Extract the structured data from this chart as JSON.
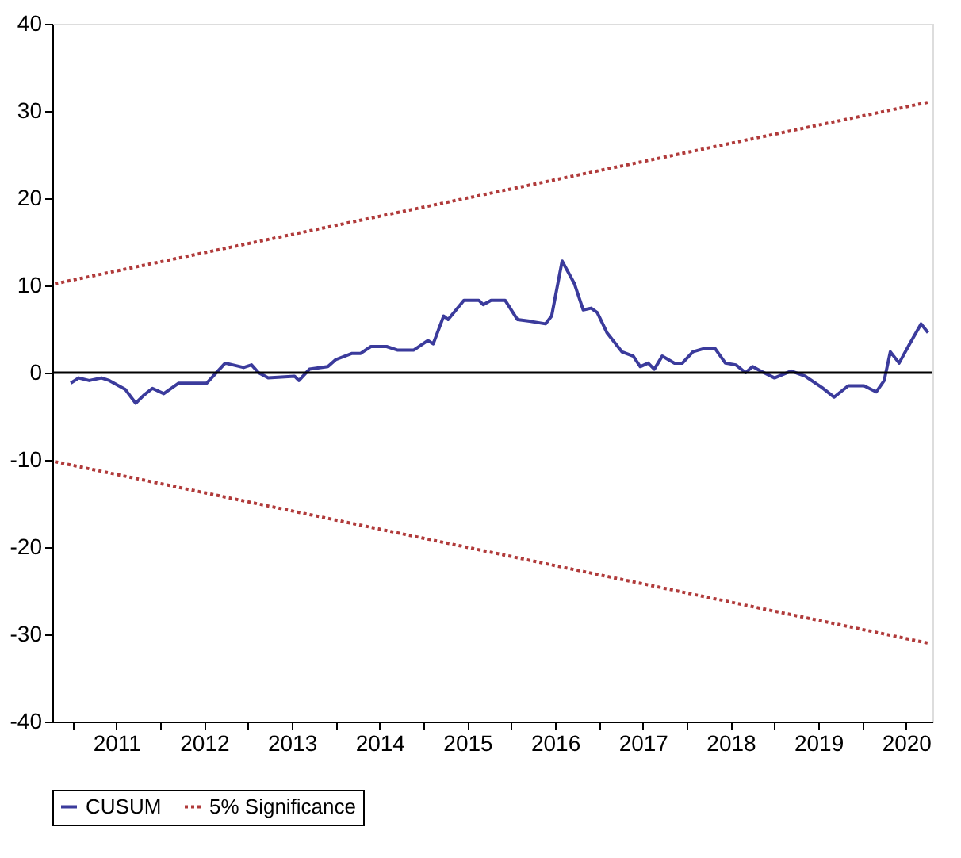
{
  "chart_data": {
    "type": "line",
    "xlim": [
      2010.77,
      2020.8
    ],
    "ylim": [
      -40,
      40
    ],
    "yticks": [
      -40,
      -30,
      -20,
      -10,
      0,
      10,
      20,
      30,
      40
    ],
    "xticks": [
      {
        "value": 2011,
        "label": null
      },
      {
        "value": 2011.5,
        "label": "2011"
      },
      {
        "value": 2012,
        "label": null
      },
      {
        "value": 2012.5,
        "label": "2012"
      },
      {
        "value": 2013,
        "label": null
      },
      {
        "value": 2013.5,
        "label": "2013"
      },
      {
        "value": 2014,
        "label": null
      },
      {
        "value": 2014.5,
        "label": "2014"
      },
      {
        "value": 2015,
        "label": null
      },
      {
        "value": 2015.5,
        "label": "2015"
      },
      {
        "value": 2016,
        "label": null
      },
      {
        "value": 2016.5,
        "label": "2016"
      },
      {
        "value": 2017,
        "label": null
      },
      {
        "value": 2017.5,
        "label": "2017"
      },
      {
        "value": 2018,
        "label": null
      },
      {
        "value": 2018.5,
        "label": "2018"
      },
      {
        "value": 2019,
        "label": null
      },
      {
        "value": 2019.5,
        "label": "2019"
      },
      {
        "value": 2020,
        "label": null
      },
      {
        "value": 2020.5,
        "label": "2020"
      }
    ],
    "grid": false,
    "legend": "bottom",
    "ref_lines": [
      {
        "axis": "y",
        "value": 0,
        "color": "#000000",
        "line_style": "solid"
      }
    ],
    "series": [
      {
        "name": "CUSUM",
        "color": "#3b3b9c",
        "line_style": "solid",
        "x": [
          2010.98,
          2011.07,
          2011.19,
          2011.33,
          2011.42,
          2011.6,
          2011.72,
          2011.81,
          2011.91,
          2012.04,
          2012.21,
          2012.53,
          2012.74,
          2012.95,
          2013.04,
          2013.12,
          2013.23,
          2013.53,
          2013.58,
          2013.7,
          2013.91,
          2014.0,
          2014.18,
          2014.28,
          2014.4,
          2014.58,
          2014.7,
          2014.89,
          2015.05,
          2015.11,
          2015.23,
          2015.28,
          2015.46,
          2015.63,
          2015.68,
          2015.77,
          2015.93,
          2016.07,
          2016.21,
          2016.39,
          2016.46,
          2016.58,
          2016.72,
          2016.82,
          2016.91,
          2016.98,
          2017.09,
          2017.26,
          2017.39,
          2017.47,
          2017.56,
          2017.63,
          2017.72,
          2017.86,
          2017.95,
          2018.07,
          2018.21,
          2018.32,
          2018.44,
          2018.56,
          2018.67,
          2018.75,
          2018.84,
          2019.0,
          2019.19,
          2019.35,
          2019.54,
          2019.68,
          2019.84,
          2020.02,
          2020.16,
          2020.25,
          2020.32,
          2020.42,
          2020.54,
          2020.67,
          2020.75
        ],
        "values": [
          -1.2,
          -0.6,
          -0.9,
          -0.6,
          -0.9,
          -1.9,
          -3.5,
          -2.6,
          -1.8,
          -2.4,
          -1.2,
          -1.2,
          1.1,
          0.6,
          0.9,
          0,
          -0.6,
          -0.4,
          -0.9,
          0.4,
          0.7,
          1.5,
          2.2,
          2.2,
          3.0,
          3.0,
          2.6,
          2.6,
          3.7,
          3.3,
          6.5,
          6.1,
          8.3,
          8.3,
          7.8,
          8.3,
          8.3,
          6.1,
          5.9,
          5.6,
          6.5,
          12.8,
          10.2,
          7.2,
          7.4,
          6.9,
          4.6,
          2.4,
          1.9,
          0.7,
          1.1,
          0.4,
          1.9,
          1.1,
          1.1,
          2.4,
          2.8,
          2.8,
          1.1,
          0.9,
          0,
          0.7,
          0.2,
          -0.6,
          0.2,
          -0.4,
          -1.7,
          -2.8,
          -1.5,
          -1.5,
          -2.2,
          -0.9,
          2.4,
          1.1,
          3.3,
          5.6,
          4.6
        ]
      },
      {
        "name": "5% Significance",
        "color": "#b03a3a",
        "line_style": "dotted",
        "x": [
          2010.8,
          2020.75
        ],
        "values": [
          10.2,
          31
        ]
      },
      {
        "color": "#b03a3a",
        "line_style": "dotted",
        "x": [
          2010.8,
          2020.75
        ],
        "values": [
          -10.2,
          -31
        ]
      }
    ]
  }
}
